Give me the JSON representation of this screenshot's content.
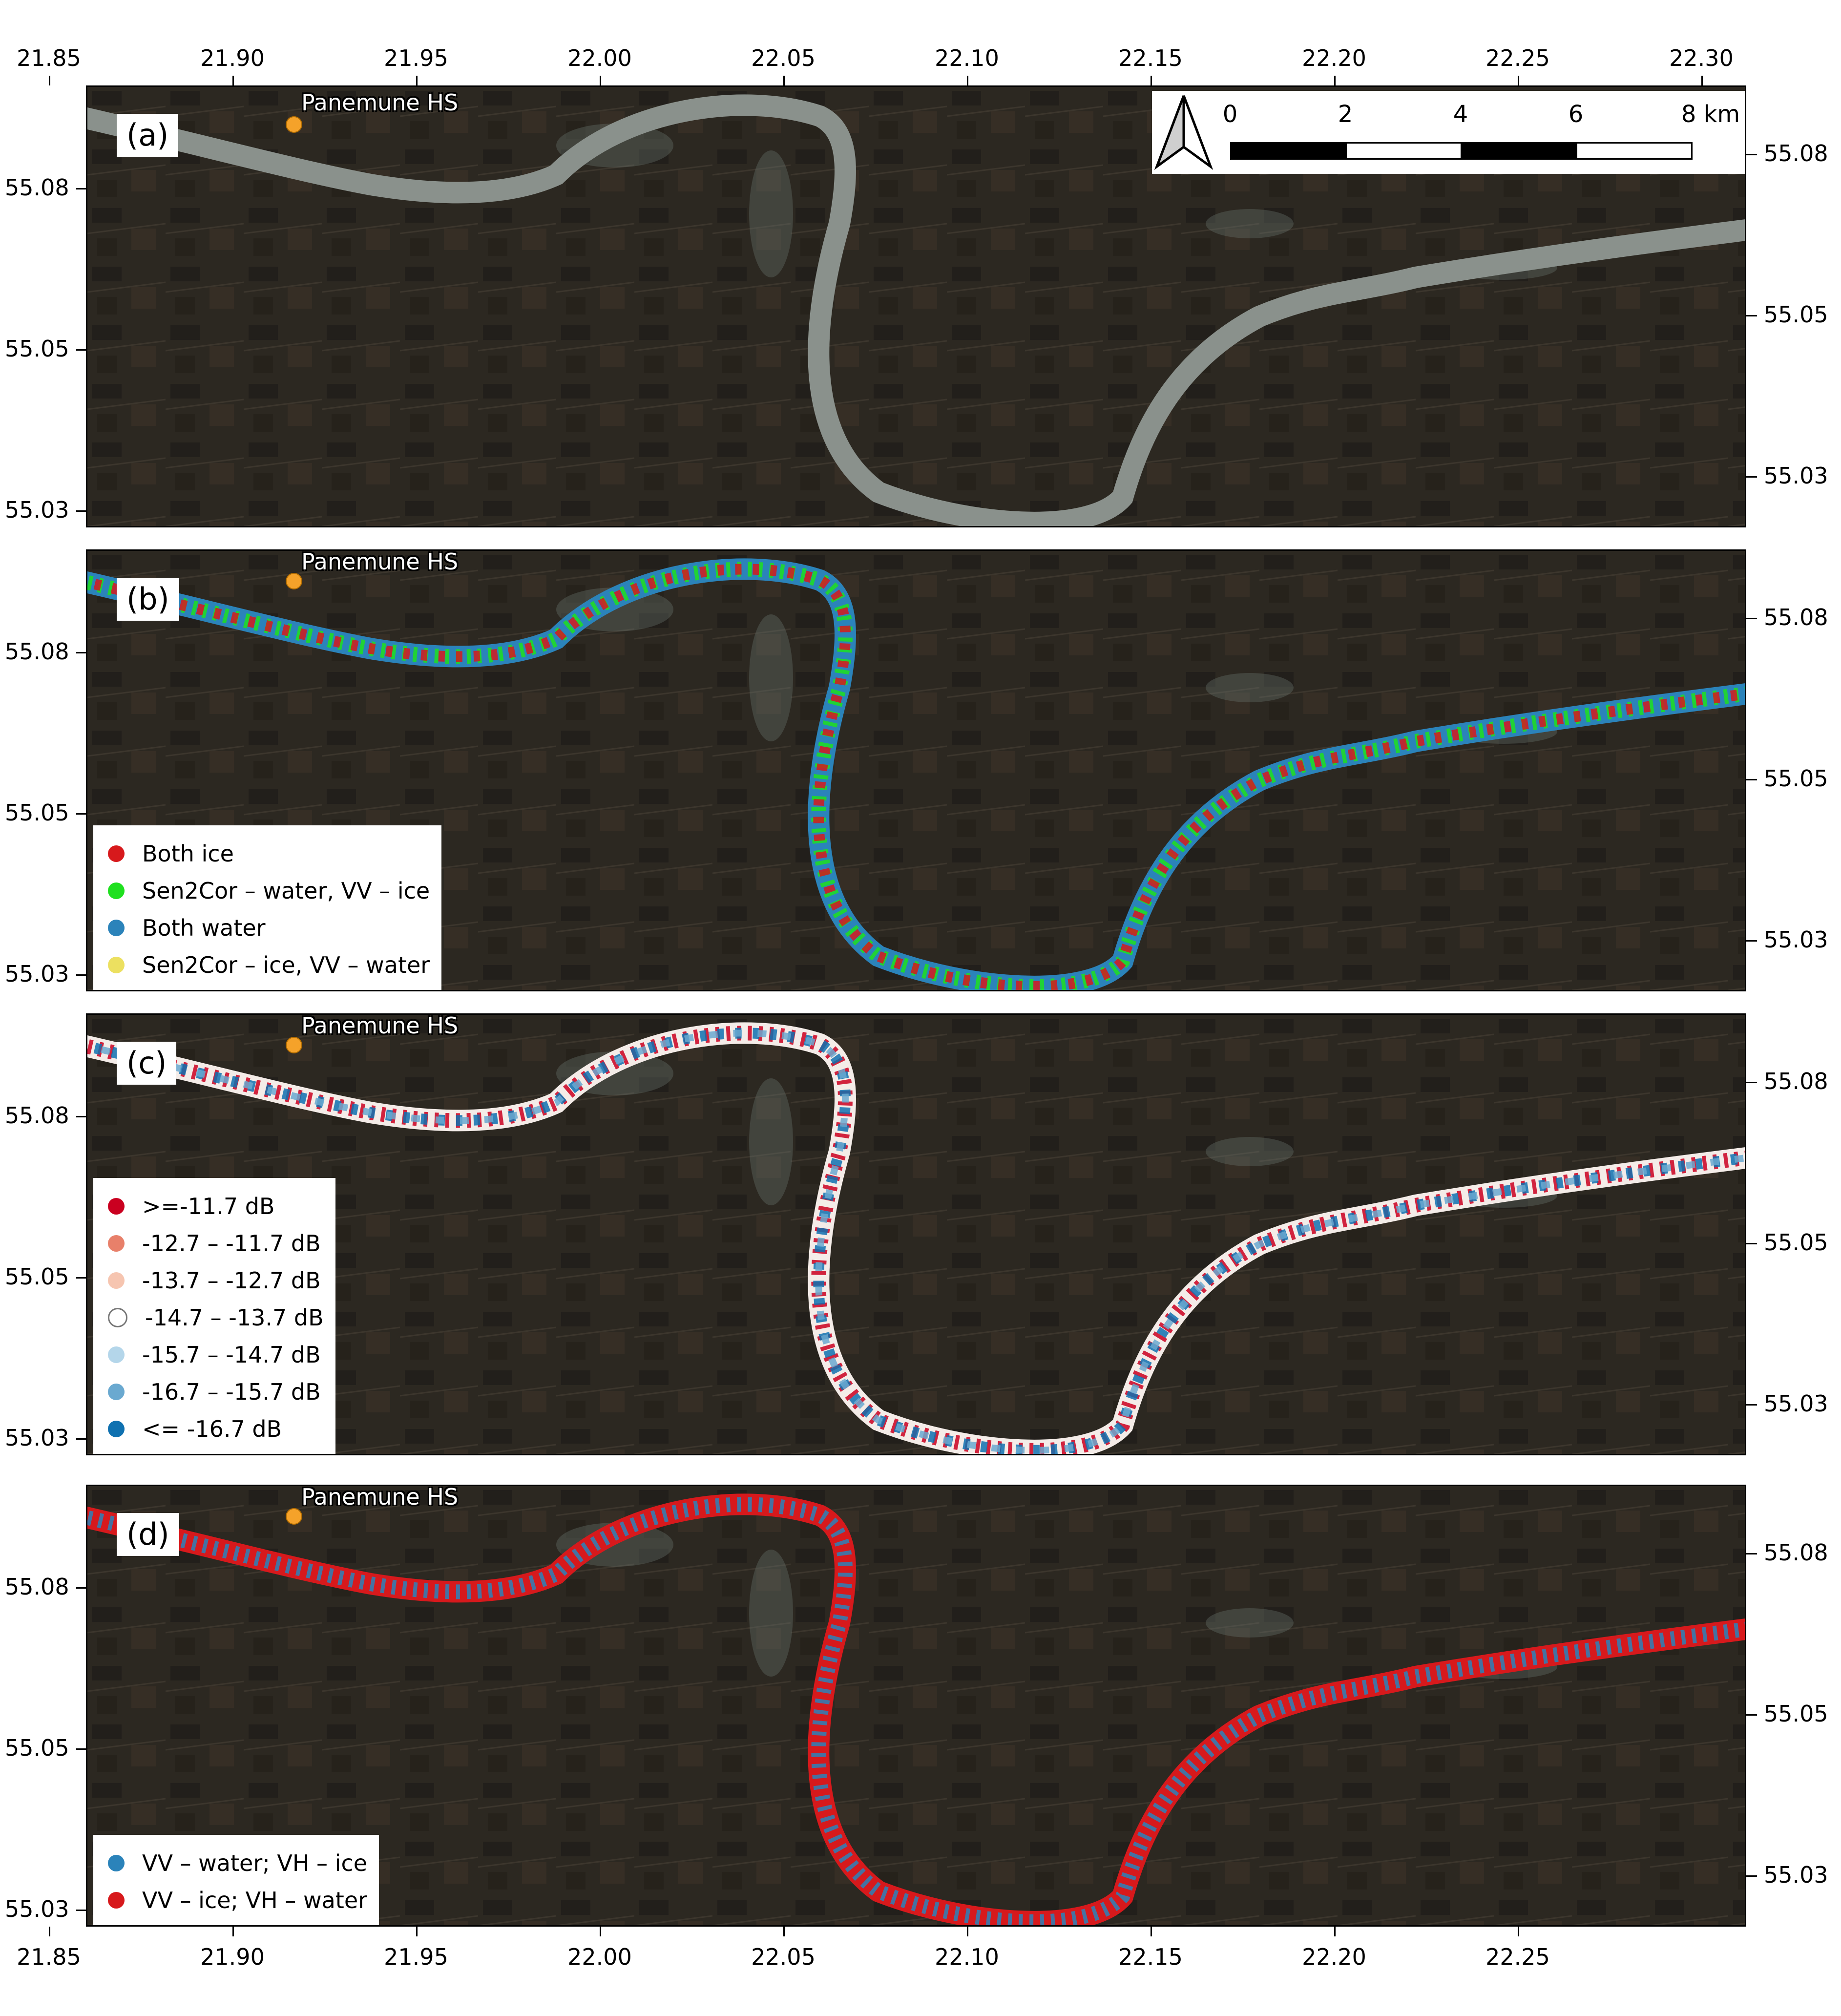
{
  "x_ticks_top": [
    "21.85",
    "21.90",
    "21.95",
    "22.00",
    "22.05",
    "22.10",
    "22.15",
    "22.20",
    "22.25",
    "22.30"
  ],
  "x_ticks_bottom": [
    "21.85",
    "21.90",
    "21.95",
    "22.00",
    "22.05",
    "22.10",
    "22.15",
    "22.20",
    "22.25"
  ],
  "y_ticks": [
    "55.08",
    "55.05",
    "55.03"
  ],
  "station_label": "Panemune HS",
  "scale_bar": {
    "labels": [
      "0",
      "2",
      "4",
      "6",
      "8 km"
    ]
  },
  "panels": [
    {
      "label": "(a)",
      "legend": []
    },
    {
      "label": "(b)",
      "legend": [
        {
          "text": "Both ice",
          "color": "#d7191c"
        },
        {
          "text": "Sen2Cor – water, VV – ice",
          "color": "#1fe01f"
        },
        {
          "text": "Both water",
          "color": "#2b83ba"
        },
        {
          "text": "Sen2Cor – ice, VV – water",
          "color": "#ece060"
        }
      ]
    },
    {
      "label": "(c)",
      "legend": [
        {
          "text": ">=-11.7  dB",
          "color": "#ca0020"
        },
        {
          "text": "-12.7 – -11.7 dB",
          "color": "#e8806a"
        },
        {
          "text": "-13.7 – -12.7 dB",
          "color": "#f6c5b0"
        },
        {
          "text": "-14.7 – -13.7 dB",
          "color": "#ffffff"
        },
        {
          "text": "-15.7 – -14.7 dB",
          "color": "#b4d6ea"
        },
        {
          "text": "-16.7 – -15.7 dB",
          "color": "#6aa9d0"
        },
        {
          "text": " <= -16.7 dB",
          "color": "#0f71b0"
        }
      ]
    },
    {
      "label": "(d)",
      "legend": [
        {
          "text": "VV – water; VH – ice",
          "color": "#2b83ba"
        },
        {
          "text": "VV – ice; VH – water",
          "color": "#d7191c"
        }
      ]
    }
  ]
}
